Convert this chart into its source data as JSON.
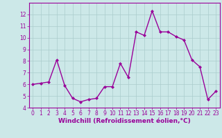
{
  "x": [
    0,
    1,
    2,
    3,
    4,
    5,
    6,
    7,
    8,
    9,
    10,
    11,
    12,
    13,
    14,
    15,
    16,
    17,
    18,
    19,
    20,
    21,
    22,
    23
  ],
  "y": [
    6.0,
    6.1,
    6.2,
    8.1,
    5.9,
    4.8,
    4.5,
    4.7,
    4.8,
    5.8,
    5.8,
    7.8,
    6.6,
    10.5,
    10.2,
    12.3,
    10.5,
    10.5,
    10.1,
    9.8,
    8.1,
    7.5,
    4.7,
    5.4
  ],
  "line_color": "#990099",
  "marker": "D",
  "marker_size": 2,
  "bg_color": "#cce8e8",
  "grid_color": "#aacccc",
  "xlabel": "Windchill (Refroidissement éolien,°C)",
  "ylim": [
    4,
    13
  ],
  "xlim": [
    -0.5,
    23.5
  ],
  "yticks": [
    4,
    5,
    6,
    7,
    8,
    9,
    10,
    11,
    12
  ],
  "xticks": [
    0,
    1,
    2,
    3,
    4,
    5,
    6,
    7,
    8,
    9,
    10,
    11,
    12,
    13,
    14,
    15,
    16,
    17,
    18,
    19,
    20,
    21,
    22,
    23
  ],
  "tick_label_fontsize": 5.5,
  "xlabel_fontsize": 6.5,
  "line_width": 1.0
}
